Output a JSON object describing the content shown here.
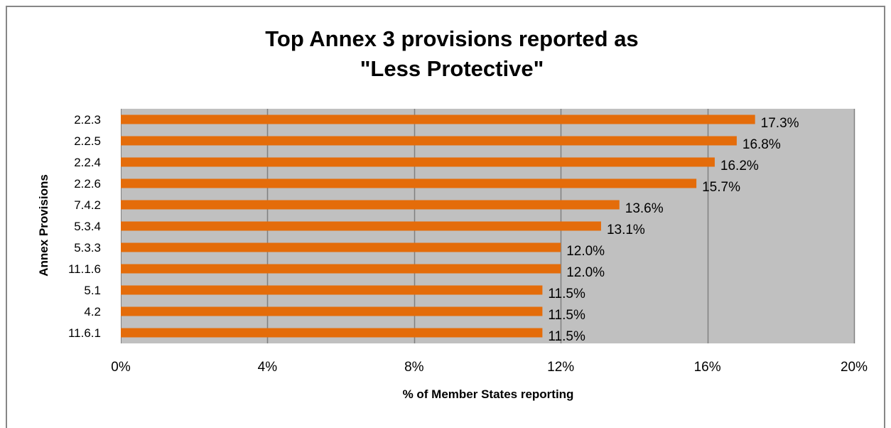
{
  "chart_data": {
    "type": "bar",
    "orientation": "horizontal",
    "title_lines": [
      "Top Annex 3 provisions reported as",
      "\"Less Protective\""
    ],
    "xlabel": "% of Member States reporting",
    "ylabel": "Annex Provisions",
    "xlim": [
      0,
      20
    ],
    "xticks": [
      0,
      4,
      8,
      12,
      16,
      20
    ],
    "xtick_labels": [
      "0%",
      "4%",
      "8%",
      "12%",
      "16%",
      "20%"
    ],
    "grid": "vertical",
    "legend": "none",
    "colors": {
      "bar": "#E46C0A",
      "plot_background": "#C0C0C0",
      "gridline": "#808080"
    },
    "categories": [
      "2.2.3",
      "2.2.5",
      "2.2.4",
      "2.2.6",
      "7.4.2",
      "5.3.4",
      "5.3.3",
      "11.1.6",
      "5.1",
      "4.2",
      "11.6.1"
    ],
    "values": [
      17.3,
      16.8,
      16.2,
      15.7,
      13.6,
      13.1,
      12.0,
      12.0,
      11.5,
      11.5,
      11.5
    ],
    "data_labels": [
      "17.3%",
      "16.8%",
      "16.2%",
      "15.7%",
      "13.6%",
      "13.1%",
      "12.0%",
      "12.0%",
      "11.5%",
      "11.5%",
      "11.5%"
    ]
  }
}
